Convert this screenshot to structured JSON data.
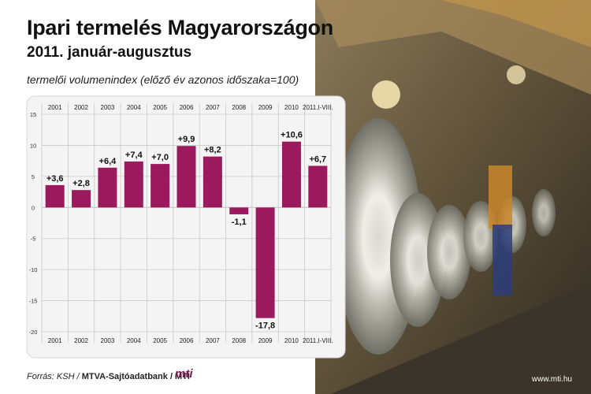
{
  "header": {
    "title": "Ipari termelés Magyarországon",
    "subtitle": "2011. január-augusztus",
    "note": "termelői volumenindex (előző év azonos időszaka=100)"
  },
  "footer": {
    "source_prefix": "Forrás: KSH / ",
    "source_bold": "MTVA-Sajtóadatbank / MTI",
    "logo": "mti",
    "website": "www.mti.hu"
  },
  "colors": {
    "bar": "#9b1a5e",
    "panel": "#f4f4f4",
    "grid": "#c8c8c8"
  },
  "chart_data": {
    "type": "bar",
    "categories": [
      "2001",
      "2002",
      "2003",
      "2004",
      "2005",
      "2006",
      "2007",
      "2008",
      "2009",
      "2010",
      "2011.I-VIII."
    ],
    "values": [
      3.6,
      2.8,
      6.4,
      7.4,
      7.0,
      9.9,
      8.2,
      -1.1,
      -17.8,
      10.6,
      6.7
    ],
    "labels": [
      "+3,6",
      "+2,8",
      "+6,4",
      "+7,4",
      "+7,0",
      "+9,9",
      "+8,2",
      "-1,1",
      "-17,8",
      "+10,6",
      "+6,7"
    ],
    "yticks": [
      "15",
      "10",
      "5",
      "0",
      "-5",
      "-10",
      "-15",
      "-20"
    ],
    "yticks_values": [
      15,
      10,
      5,
      0,
      -5,
      -10,
      -15,
      -20
    ],
    "ylim": [
      -20,
      15
    ],
    "grid": true,
    "xlabel": "",
    "ylabel": ""
  }
}
